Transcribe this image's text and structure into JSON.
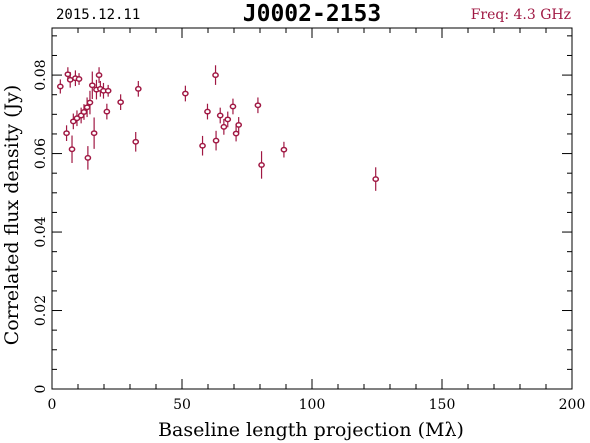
{
  "header": {
    "date": "2015.12.11",
    "source": "J0002-2153",
    "freq": "Freq: 4.3 GHz"
  },
  "colors": {
    "series": "#a01843",
    "axis": "#000000",
    "background": "#ffffff"
  },
  "chart_data": {
    "type": "scatter",
    "xlabel": "Baseline length projection (Mλ)",
    "ylabel": "Correlated flux density (Jy)",
    "xlim": [
      0,
      200
    ],
    "ylim": [
      0,
      0.092
    ],
    "x_ticks": [
      0,
      50,
      100,
      150,
      200
    ],
    "x_tick_labels": [
      "0",
      "50",
      "100",
      "150",
      "200"
    ],
    "y_ticks": [
      0,
      0.02,
      0.04,
      0.06,
      0.08
    ],
    "y_tick_labels": [
      "0",
      "0.02",
      "0.04",
      "0.06",
      "0.08"
    ],
    "grid": false,
    "error_bars": true,
    "series": [
      {
        "points": [
          {
            "x": 3.2,
            "y": 0.0771,
            "err": 0.0018
          },
          {
            "x": 5.6,
            "y": 0.0652,
            "err": 0.002
          },
          {
            "x": 6.1,
            "y": 0.0802,
            "err": 0.0018
          },
          {
            "x": 7.0,
            "y": 0.0788,
            "err": 0.002
          },
          {
            "x": 7.7,
            "y": 0.0611,
            "err": 0.0035
          },
          {
            "x": 8.2,
            "y": 0.0682,
            "err": 0.002
          },
          {
            "x": 9.0,
            "y": 0.0792,
            "err": 0.002
          },
          {
            "x": 9.6,
            "y": 0.069,
            "err": 0.002
          },
          {
            "x": 10.4,
            "y": 0.079,
            "err": 0.0015
          },
          {
            "x": 11.2,
            "y": 0.0697,
            "err": 0.002
          },
          {
            "x": 12.3,
            "y": 0.0706,
            "err": 0.002
          },
          {
            "x": 13.5,
            "y": 0.0718,
            "err": 0.0025
          },
          {
            "x": 13.8,
            "y": 0.0589,
            "err": 0.003
          },
          {
            "x": 14.6,
            "y": 0.073,
            "err": 0.003
          },
          {
            "x": 15.5,
            "y": 0.0774,
            "err": 0.0035
          },
          {
            "x": 16.2,
            "y": 0.0652,
            "err": 0.004
          },
          {
            "x": 17.1,
            "y": 0.0763,
            "err": 0.0025
          },
          {
            "x": 18.1,
            "y": 0.08,
            "err": 0.002
          },
          {
            "x": 18.6,
            "y": 0.0765,
            "err": 0.002
          },
          {
            "x": 19.8,
            "y": 0.076,
            "err": 0.002
          },
          {
            "x": 21.1,
            "y": 0.0707,
            "err": 0.002
          },
          {
            "x": 21.6,
            "y": 0.076,
            "err": 0.0015
          },
          {
            "x": 26.4,
            "y": 0.0731,
            "err": 0.002
          },
          {
            "x": 32.2,
            "y": 0.063,
            "err": 0.0025
          },
          {
            "x": 33.2,
            "y": 0.0765,
            "err": 0.002
          },
          {
            "x": 51.3,
            "y": 0.0753,
            "err": 0.002
          },
          {
            "x": 57.9,
            "y": 0.062,
            "err": 0.0025
          },
          {
            "x": 59.8,
            "y": 0.0707,
            "err": 0.002
          },
          {
            "x": 62.9,
            "y": 0.08,
            "err": 0.0025
          },
          {
            "x": 63.1,
            "y": 0.0633,
            "err": 0.0025
          },
          {
            "x": 64.7,
            "y": 0.0697,
            "err": 0.002
          },
          {
            "x": 66.1,
            "y": 0.0668,
            "err": 0.002
          },
          {
            "x": 67.6,
            "y": 0.0687,
            "err": 0.002
          },
          {
            "x": 69.6,
            "y": 0.072,
            "err": 0.002
          },
          {
            "x": 70.8,
            "y": 0.0651,
            "err": 0.002
          },
          {
            "x": 71.8,
            "y": 0.0673,
            "err": 0.002
          },
          {
            "x": 79.2,
            "y": 0.0723,
            "err": 0.002
          },
          {
            "x": 80.6,
            "y": 0.0571,
            "err": 0.0035
          },
          {
            "x": 89.2,
            "y": 0.061,
            "err": 0.002
          },
          {
            "x": 124.5,
            "y": 0.0535,
            "err": 0.003
          }
        ]
      }
    ]
  }
}
